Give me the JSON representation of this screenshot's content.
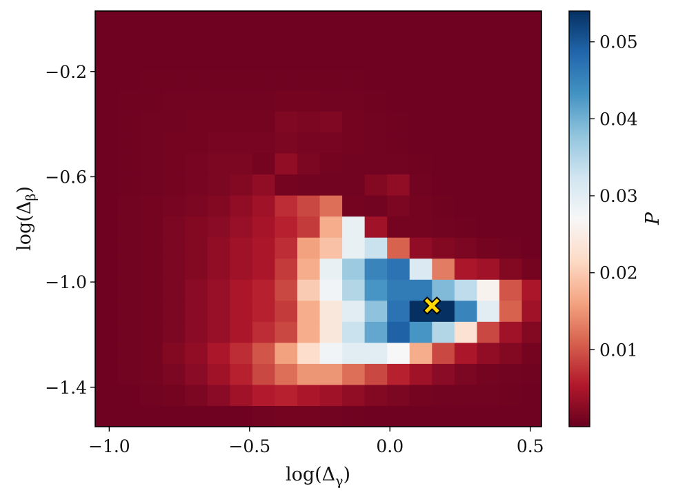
{
  "chart_data": {
    "type": "heatmap",
    "xlabel": "log(Δ",
    "xlabel_sub": "γ",
    "ylabel": "log(Δ",
    "ylabel_sub": "β",
    "xlim": [
      -1.05,
      0.54
    ],
    "ylim": [
      -1.55,
      0.03
    ],
    "x_ticks": [
      {
        "value": -1.0,
        "label": "−1.0"
      },
      {
        "value": -0.5,
        "label": "−0.5"
      },
      {
        "value": 0.0,
        "label": "0.0"
      },
      {
        "value": 0.5,
        "label": "0.5"
      }
    ],
    "y_ticks": [
      {
        "value": -0.2,
        "label": "−0.2"
      },
      {
        "value": -0.6,
        "label": "−0.6"
      },
      {
        "value": -1.0,
        "label": "−1.0"
      },
      {
        "value": -1.4,
        "label": "−1.4"
      }
    ],
    "grid": false,
    "colormap": "RdBu",
    "colorbar": {
      "label": "P",
      "vmin": 0.0,
      "vmax": 0.054,
      "ticks": [
        {
          "value": 0.01,
          "label": "0.01"
        },
        {
          "value": 0.02,
          "label": "0.02"
        },
        {
          "value": 0.03,
          "label": "0.03"
        },
        {
          "value": 0.04,
          "label": "0.04"
        },
        {
          "value": 0.05,
          "label": "0.05"
        }
      ]
    },
    "x_edges": [
      -1.05,
      -0.97,
      -0.89,
      -0.81,
      -0.73,
      -0.65,
      -0.57,
      -0.49,
      -0.41,
      -0.33,
      -0.25,
      -0.17,
      -0.09,
      -0.01,
      0.07,
      0.15,
      0.23,
      0.31,
      0.39,
      0.47,
      0.55
    ],
    "y_edges": [
      -1.55,
      -1.47,
      -1.39,
      -1.31,
      -1.23,
      -1.15,
      -1.07,
      -0.99,
      -0.91,
      -0.83,
      -0.75,
      -0.67,
      -0.59,
      -0.51,
      -0.43,
      -0.35,
      -0.27,
      -0.19,
      -0.11,
      -0.03,
      0.05
    ],
    "values_bottom_to_top": [
      [
        0.0005,
        0.0005,
        0.0005,
        0.0005,
        0.0005,
        0.0005,
        0.0005,
        0.0008,
        0.001,
        0.001,
        0.0008,
        0.0006,
        0.0005,
        0.0005,
        0.0005,
        0.0005,
        0.0005,
        0.0005,
        0.0005,
        0.0005
      ],
      [
        0.0005,
        0.0005,
        0.0008,
        0.001,
        0.0015,
        0.0025,
        0.004,
        0.0055,
        0.006,
        0.005,
        0.004,
        0.003,
        0.002,
        0.0015,
        0.001,
        0.0008,
        0.0008,
        0.0008,
        0.0006,
        0.0005
      ],
      [
        0.0005,
        0.0008,
        0.001,
        0.0015,
        0.0025,
        0.004,
        0.006,
        0.009,
        0.012,
        0.015,
        0.015,
        0.012,
        0.009,
        0.006,
        0.004,
        0.0025,
        0.0015,
        0.001,
        0.0008,
        0.0006
      ],
      [
        0.0005,
        0.0008,
        0.001,
        0.002,
        0.003,
        0.005,
        0.007,
        0.01,
        0.016,
        0.022,
        0.028,
        0.03,
        0.03,
        0.027,
        0.017,
        0.009,
        0.005,
        0.003,
        0.002,
        0.001
      ],
      [
        0.0005,
        0.0008,
        0.001,
        0.0015,
        0.0025,
        0.0035,
        0.005,
        0.007,
        0.009,
        0.017,
        0.024,
        0.033,
        0.041,
        0.049,
        0.043,
        0.035,
        0.023,
        0.009,
        0.004,
        0.002
      ],
      [
        0.0005,
        0.0008,
        0.001,
        0.0015,
        0.0025,
        0.0035,
        0.005,
        0.006,
        0.008,
        0.017,
        0.024,
        0.03,
        0.038,
        0.047,
        0.054,
        0.054,
        0.045,
        0.03,
        0.011,
        0.004
      ],
      [
        0.0005,
        0.0008,
        0.001,
        0.0015,
        0.0025,
        0.0035,
        0.005,
        0.006,
        0.009,
        0.02,
        0.028,
        0.035,
        0.043,
        0.046,
        0.046,
        0.039,
        0.034,
        0.026,
        0.01,
        0.005
      ],
      [
        0.0005,
        0.0008,
        0.001,
        0.0015,
        0.002,
        0.003,
        0.004,
        0.005,
        0.008,
        0.017,
        0.029,
        0.037,
        0.045,
        0.047,
        0.031,
        0.013,
        0.005,
        0.004,
        0.002,
        0.001
      ],
      [
        0.0005,
        0.0008,
        0.001,
        0.0015,
        0.002,
        0.003,
        0.004,
        0.005,
        0.007,
        0.016,
        0.019,
        0.029,
        0.033,
        0.011,
        0.003,
        0.002,
        0.0015,
        0.001,
        0.0008,
        0.0005
      ],
      [
        0.0005,
        0.0008,
        0.001,
        0.0015,
        0.002,
        0.0025,
        0.0035,
        0.0045,
        0.006,
        0.008,
        0.017,
        0.029,
        0.004,
        0.001,
        0.001,
        0.0008,
        0.0006,
        0.0005,
        0.0005,
        0.0005
      ],
      [
        0.0005,
        0.0008,
        0.001,
        0.0012,
        0.0015,
        0.002,
        0.003,
        0.004,
        0.007,
        0.009,
        0.012,
        0.001,
        0.0008,
        0.0015,
        0.001,
        0.0006,
        0.0005,
        0.0005,
        0.0005,
        0.0005
      ],
      [
        0.0005,
        0.0006,
        0.0008,
        0.001,
        0.0012,
        0.0015,
        0.002,
        0.003,
        0.001,
        0.0008,
        0.0008,
        0.0008,
        0.002,
        0.003,
        0.0008,
        0.0005,
        0.0005,
        0.0005,
        0.0005,
        0.0005
      ],
      [
        0.0005,
        0.0006,
        0.0008,
        0.001,
        0.0012,
        0.0015,
        0.0015,
        0.001,
        0.003,
        0.0015,
        0.001,
        0.0008,
        0.0008,
        0.0008,
        0.0006,
        0.0005,
        0.0005,
        0.0005,
        0.0005,
        0.0005
      ],
      [
        0.0005,
        0.0006,
        0.0008,
        0.001,
        0.001,
        0.0012,
        0.0012,
        0.0012,
        0.0015,
        0.0012,
        0.0012,
        0.001,
        0.0008,
        0.0006,
        0.0005,
        0.0005,
        0.0005,
        0.0005,
        0.0005,
        0.0005
      ],
      [
        0.0005,
        0.0006,
        0.0008,
        0.0008,
        0.001,
        0.001,
        0.001,
        0.001,
        0.0018,
        0.0015,
        0.0018,
        0.001,
        0.0008,
        0.0006,
        0.0005,
        0.0005,
        0.0005,
        0.0005,
        0.0005,
        0.0005
      ],
      [
        0.0005,
        0.0006,
        0.0006,
        0.0008,
        0.0008,
        0.0008,
        0.0008,
        0.0008,
        0.001,
        0.001,
        0.0008,
        0.0008,
        0.0006,
        0.0005,
        0.0005,
        0.0005,
        0.0005,
        0.0005,
        0.0005,
        0.0005
      ],
      [
        0.0005,
        0.0005,
        0.0006,
        0.0006,
        0.0006,
        0.0006,
        0.0006,
        0.0006,
        0.0006,
        0.0006,
        0.0006,
        0.0006,
        0.0005,
        0.0005,
        0.0005,
        0.0005,
        0.0005,
        0.0005,
        0.0005,
        0.0005
      ],
      [
        0.0005,
        0.0005,
        0.0005,
        0.0005,
        0.0005,
        0.0005,
        0.0005,
        0.0005,
        0.0005,
        0.0005,
        0.0005,
        0.0005,
        0.0005,
        0.0005,
        0.0005,
        0.0005,
        0.0005,
        0.0005,
        0.0005,
        0.0005
      ],
      [
        0.0005,
        0.0005,
        0.0005,
        0.0005,
        0.0005,
        0.0005,
        0.0005,
        0.0005,
        0.0005,
        0.0005,
        0.0005,
        0.0005,
        0.0005,
        0.0005,
        0.0005,
        0.0005,
        0.0005,
        0.0005,
        0.0005,
        0.0005
      ],
      [
        0.0005,
        0.0005,
        0.0005,
        0.0005,
        0.0005,
        0.0005,
        0.0005,
        0.0005,
        0.0005,
        0.0005,
        0.0005,
        0.0005,
        0.0005,
        0.0005,
        0.0005,
        0.0005,
        0.0005,
        0.0005,
        0.0005,
        0.0005
      ]
    ],
    "marker": {
      "x": 0.15,
      "y": -1.09,
      "shape": "x-cross",
      "color": "#FFD700"
    }
  }
}
